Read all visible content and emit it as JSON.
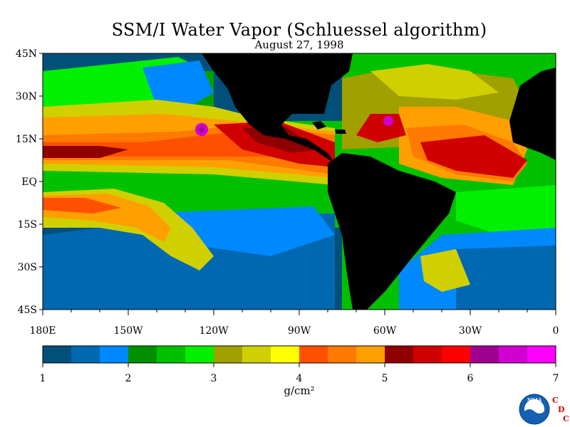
{
  "title": "SSM/I Water Vapor (Schluessel algorithm)",
  "date": "August 27, 1998",
  "map": {
    "lat_labels": [
      "45N",
      "30N",
      "15N",
      "EQ",
      "15S",
      "30S",
      "45S"
    ],
    "lon_labels": [
      "180E",
      "150W",
      "120W",
      "90W",
      "60W",
      "30W",
      "0"
    ]
  },
  "colorbar": {
    "unit": "g/cm²",
    "ticks": [
      "1",
      "2",
      "3",
      "4",
      "5",
      "6",
      "7"
    ],
    "range": [
      1,
      7
    ],
    "colors": [
      "#00507a",
      "#0068b0",
      "#0088ff",
      "#009000",
      "#00c000",
      "#00f000",
      "#a0a000",
      "#d0d000",
      "#ffff00",
      "#ff5000",
      "#ff7a00",
      "#ffa000",
      "#900000",
      "#d00000",
      "#ff0000",
      "#a00090",
      "#d000d0",
      "#ff00ff"
    ]
  },
  "logo": {
    "agency": "NOAA",
    "letters": [
      "C",
      "D",
      "C"
    ]
  }
}
